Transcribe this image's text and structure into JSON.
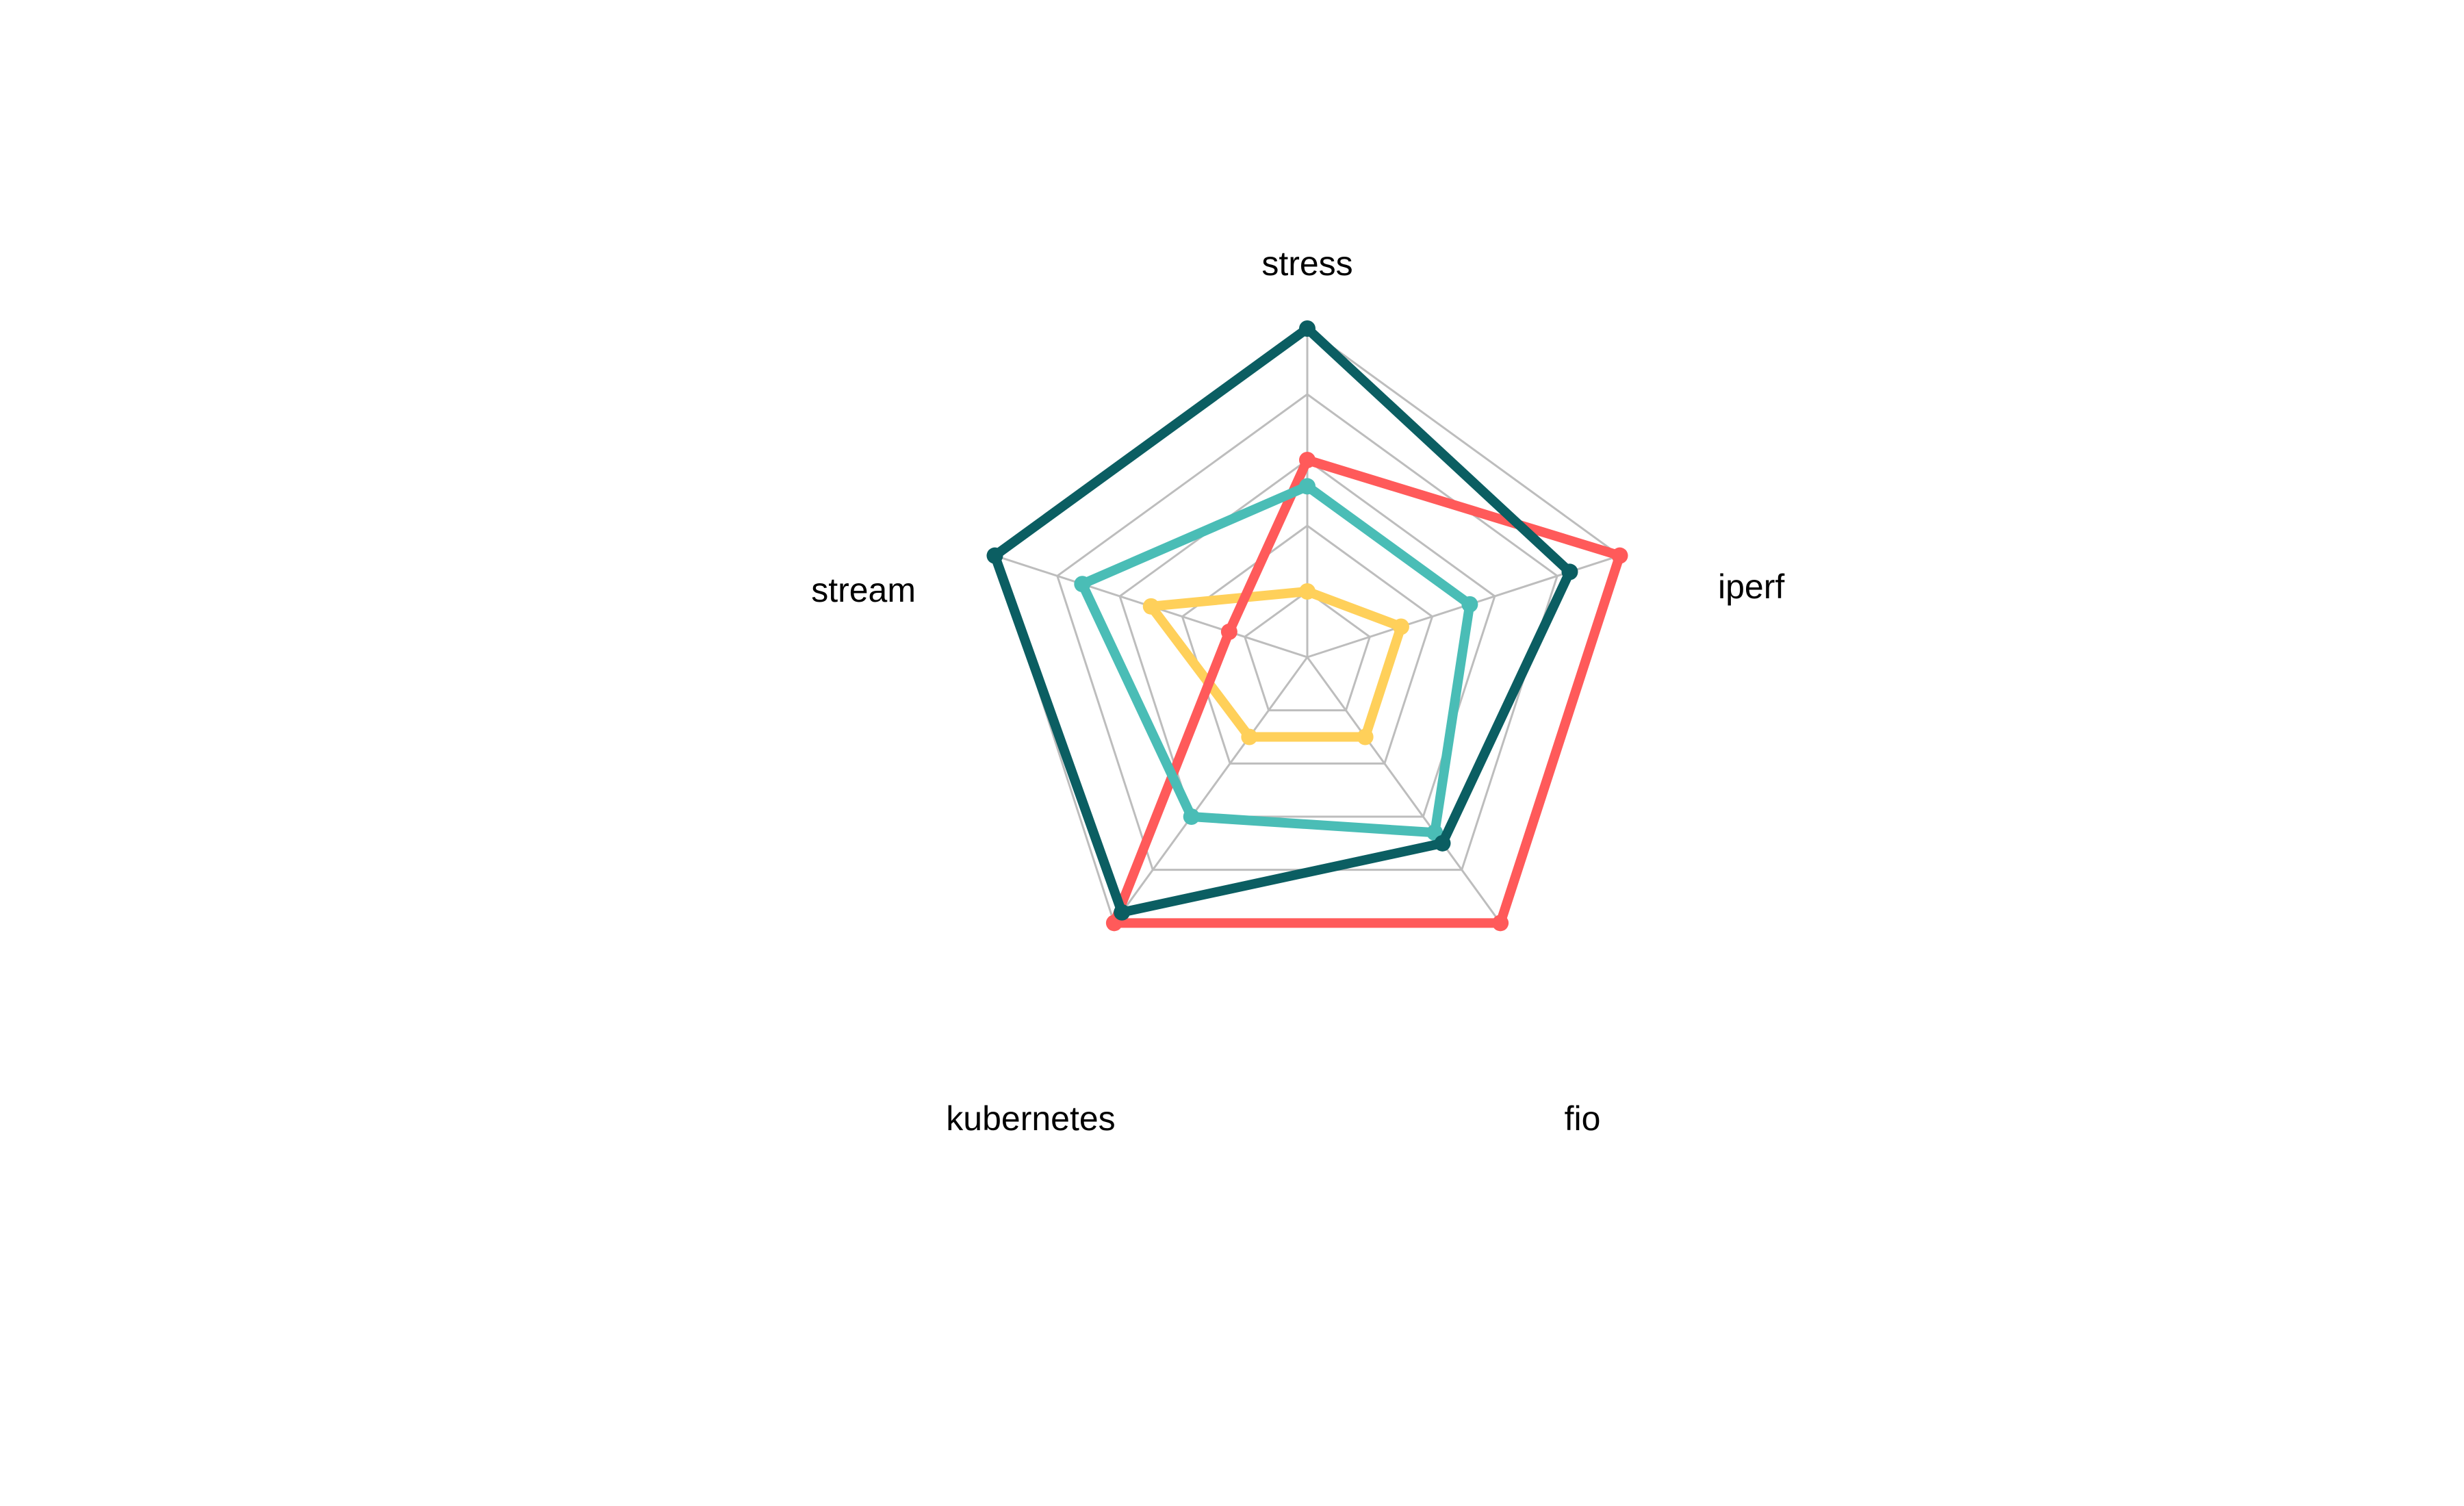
{
  "chart_data": {
    "type": "radar",
    "title": "",
    "axes": [
      "stress",
      "iperf",
      "fio",
      "kubernetes",
      "stream"
    ],
    "range": [
      0,
      1
    ],
    "grid_levels": 5,
    "grid": true,
    "legend": "none",
    "series": [
      {
        "color": "#ffd05a",
        "values": [
          0.2,
          0.3,
          0.3,
          0.3,
          0.5
        ]
      },
      {
        "color": "#ff5a5a",
        "values": [
          0.6,
          1.0,
          1.0,
          1.0,
          0.25
        ]
      },
      {
        "color": "#4abdb6",
        "values": [
          0.52,
          0.52,
          0.66,
          0.6,
          0.72
        ]
      },
      {
        "color": "#0b5e62",
        "values": [
          1.0,
          0.84,
          0.7,
          0.96,
          1.0
        ]
      }
    ]
  }
}
